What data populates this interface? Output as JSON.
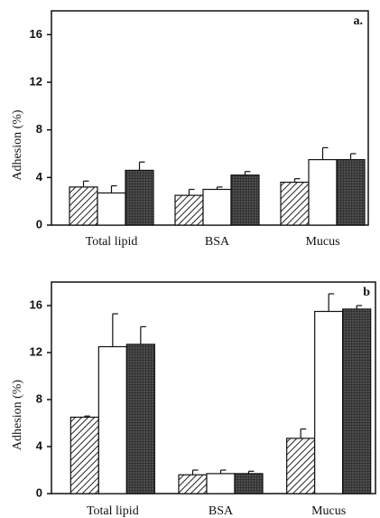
{
  "chart_data": [
    {
      "type": "bar",
      "y_label": "Adhesion (%)",
      "panel_label": "a.",
      "categories": [
        "Total lipid",
        "BSA",
        "Mucus"
      ],
      "series": [
        {
          "color": "#222222",
          "pattern": "hatch",
          "values": [
            3.2,
            2.5,
            3.6
          ],
          "errors": [
            0.5,
            0.5,
            0.3
          ]
        },
        {
          "color": "#ffffff",
          "pattern": "solid",
          "values": [
            2.7,
            3.0,
            5.5
          ],
          "errors": [
            0.6,
            0.2,
            1.0
          ]
        },
        {
          "color": "#333333",
          "pattern": "dots",
          "values": [
            4.6,
            4.2,
            5.5
          ],
          "errors": [
            0.7,
            0.3,
            0.5
          ]
        }
      ],
      "ylim": [
        0,
        18
      ],
      "yticks": [
        0,
        4,
        8,
        12,
        16
      ]
    },
    {
      "type": "bar",
      "y_label": "Adhesion (%)",
      "panel_label": "b",
      "categories": [
        "Total lipid",
        "BSA",
        "Mucus"
      ],
      "series": [
        {
          "color": "#222222",
          "pattern": "hatch",
          "values": [
            6.5,
            1.6,
            4.7
          ],
          "errors": [
            0.1,
            0.4,
            0.8
          ]
        },
        {
          "color": "#ffffff",
          "pattern": "solid",
          "values": [
            12.5,
            1.7,
            15.5
          ],
          "errors": [
            2.8,
            0.3,
            1.5
          ]
        },
        {
          "color": "#333333",
          "pattern": "dots",
          "values": [
            12.7,
            1.7,
            15.7
          ],
          "errors": [
            1.5,
            0.2,
            0.3
          ]
        }
      ],
      "ylim": [
        0,
        18
      ],
      "yticks": [
        0,
        4,
        8,
        12,
        16
      ]
    }
  ]
}
